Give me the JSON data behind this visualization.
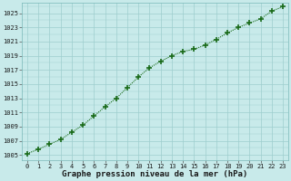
{
  "x": [
    0,
    1,
    2,
    3,
    4,
    5,
    6,
    7,
    8,
    9,
    10,
    11,
    12,
    13,
    14,
    15,
    16,
    17,
    18,
    19,
    20,
    21,
    22,
    23
  ],
  "y": [
    1005.2,
    1005.8,
    1006.5,
    1007.2,
    1008.2,
    1009.2,
    1010.5,
    1011.8,
    1013.0,
    1014.5,
    1016.0,
    1017.3,
    1018.2,
    1019.0,
    1019.6,
    1019.9,
    1020.5,
    1021.3,
    1022.2,
    1023.0,
    1023.6,
    1024.2,
    1025.3,
    1025.9
  ],
  "line_color": "#1a6b1a",
  "marker": "+",
  "markersize": 4,
  "markeredgewidth": 1.2,
  "linewidth": 0.8,
  "background_color": "#c8eaea",
  "grid_color": "#9ecece",
  "xlabel": "Graphe pression niveau de la mer (hPa)",
  "xlabel_fontsize": 6.5,
  "ylabel_ticks": [
    1005,
    1007,
    1009,
    1011,
    1013,
    1015,
    1017,
    1019,
    1021,
    1023,
    1025
  ],
  "ylim": [
    1004.3,
    1026.5
  ],
  "xlim": [
    -0.5,
    23.5
  ],
  "tick_fontsize": 5.0,
  "xticks": [
    0,
    1,
    2,
    3,
    4,
    5,
    6,
    7,
    8,
    9,
    10,
    11,
    12,
    13,
    14,
    15,
    16,
    17,
    18,
    19,
    20,
    21,
    22,
    23
  ]
}
